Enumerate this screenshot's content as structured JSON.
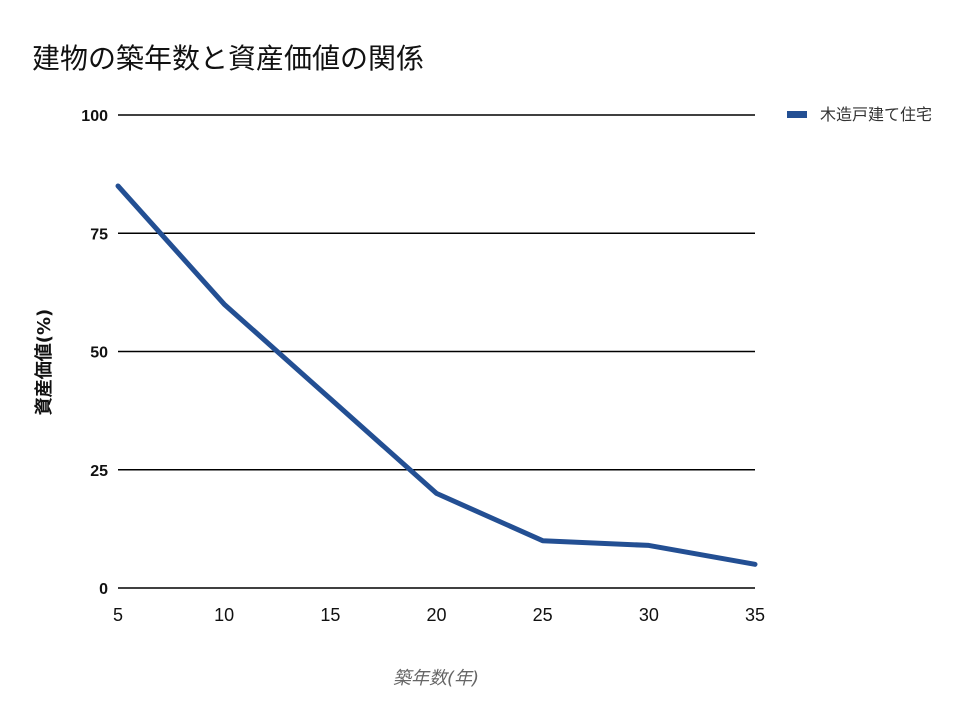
{
  "chart_data": {
    "type": "line",
    "title": "建物の築年数と資産価値の関係",
    "xlabel": "築年数(年)",
    "ylabel": "資産価値(%)",
    "x": [
      5,
      10,
      15,
      20,
      25,
      30,
      35
    ],
    "series": [
      {
        "name": "木造戸建て住宅",
        "values": [
          85,
          60,
          40,
          20,
          10,
          9,
          5
        ],
        "color": "#234f93"
      }
    ],
    "x_ticks": [
      "5",
      "10",
      "15",
      "20",
      "25",
      "30",
      "35"
    ],
    "y_ticks": [
      "0",
      "25",
      "50",
      "75",
      "100"
    ],
    "xlim": [
      5,
      35
    ],
    "ylim": [
      0,
      100
    ],
    "grid": true,
    "legend_position": "top-right"
  }
}
